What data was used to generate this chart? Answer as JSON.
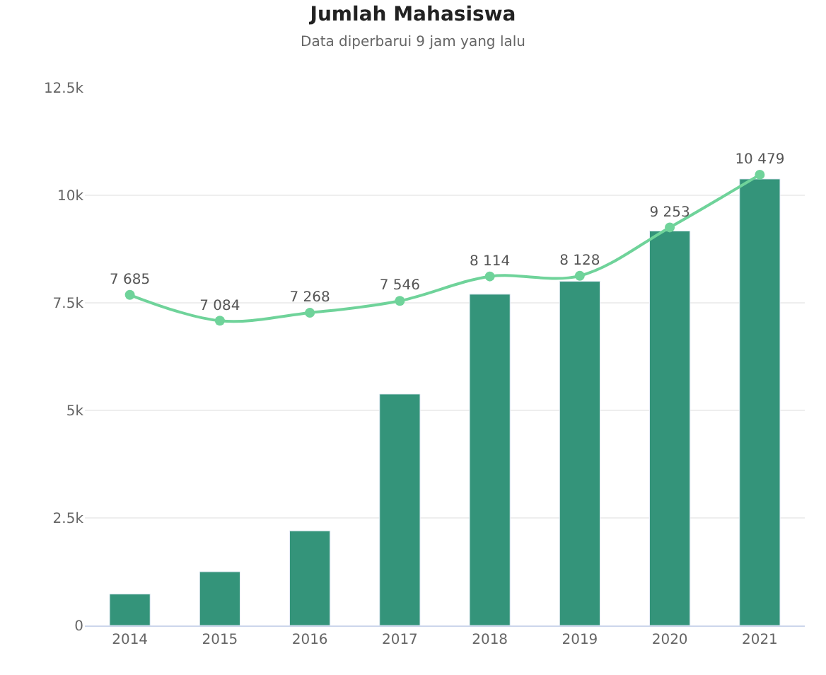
{
  "chart_data": {
    "type": "bar",
    "title": "Jumlah Mahasiswa",
    "subtitle": "Data diperbarui 9 jam yang lalu",
    "categories": [
      "2014",
      "2015",
      "2016",
      "2017",
      "2018",
      "2019",
      "2020",
      "2021"
    ],
    "series": [
      {
        "color": "#34947a",
        "values": [
          730,
          1250,
          2200,
          5380,
          7700,
          8000,
          9170,
          10380
        ]
      },
      {
        "type": "line",
        "color": "#6fd39a",
        "values": [
          7685,
          7084,
          7268,
          7546,
          8114,
          8128,
          9253,
          10479
        ],
        "value_labels": [
          "7 685",
          "7 084",
          "7 268",
          "7 546",
          "8 114",
          "8 128",
          "9 253",
          "10 479"
        ],
        "marker": "circle"
      }
    ],
    "ylim": [
      0,
      12500
    ],
    "yticks": [
      {
        "value": 0,
        "label": "0"
      },
      {
        "value": 2500,
        "label": "2.5k"
      },
      {
        "value": 5000,
        "label": "5k"
      },
      {
        "value": 7500,
        "label": "7.5k"
      },
      {
        "value": 10000,
        "label": "10k"
      },
      {
        "value": 12500,
        "label": "12.5k"
      }
    ],
    "grid": "y"
  }
}
